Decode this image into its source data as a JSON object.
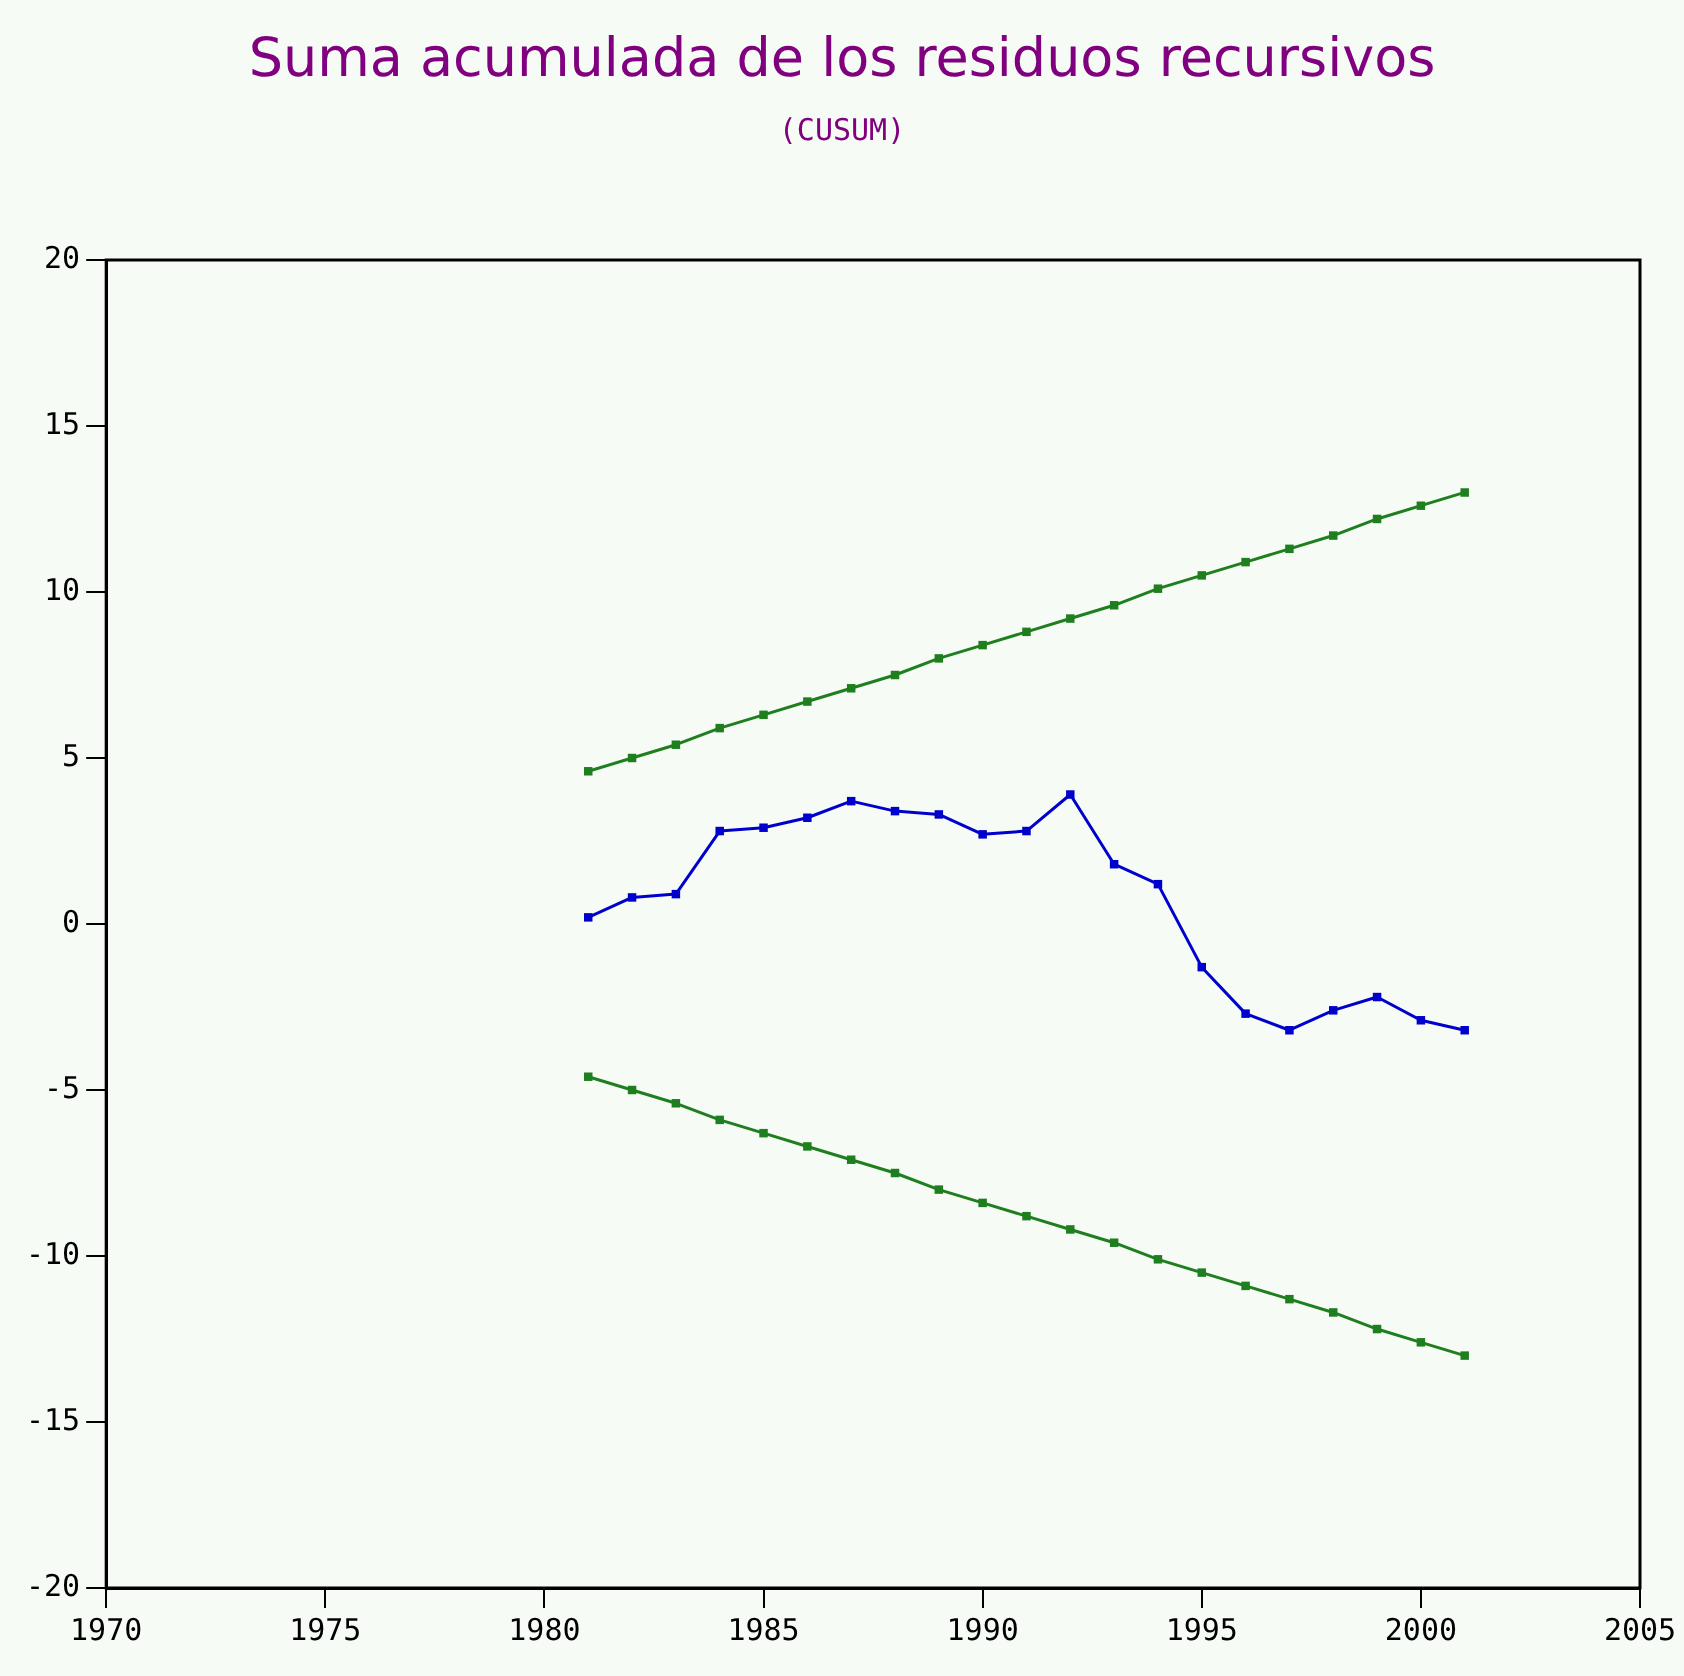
{
  "chart_data": {
    "type": "line",
    "title": "Suma acumulada de los residuos recursivos",
    "subtitle": "(CUSUM)",
    "x": [
      1981,
      1982,
      1983,
      1984,
      1985,
      1986,
      1987,
      1988,
      1989,
      1990,
      1991,
      1992,
      1993,
      1994,
      1995,
      1996,
      1997,
      1998,
      1999,
      2000,
      2001
    ],
    "series": [
      {
        "color": "#0000cc",
        "values": [
          0.2,
          0.8,
          0.9,
          2.8,
          2.9,
          3.2,
          3.7,
          3.4,
          3.3,
          2.7,
          2.8,
          3.9,
          1.8,
          1.2,
          -1.3,
          -2.7,
          -3.2,
          -2.6,
          -2.2,
          -2.9,
          -3.2
        ]
      },
      {
        "color": "#1f7f1f",
        "values": [
          4.6,
          5.0,
          5.4,
          5.9,
          6.3,
          6.7,
          7.1,
          7.5,
          8.0,
          8.4,
          8.8,
          9.2,
          9.6,
          10.1,
          10.5,
          10.9,
          11.3,
          11.7,
          12.2,
          12.6,
          13.0
        ]
      },
      {
        "color": "#1f7f1f",
        "values": [
          -4.6,
          -5.0,
          -5.4,
          -5.9,
          -6.3,
          -6.7,
          -7.1,
          -7.5,
          -8.0,
          -8.4,
          -8.8,
          -9.2,
          -9.6,
          -10.1,
          -10.5,
          -10.9,
          -11.3,
          -11.7,
          -12.2,
          -12.6,
          -13.0
        ]
      }
    ],
    "xlim": [
      1970,
      2005
    ],
    "xticks": [
      1970,
      1975,
      1980,
      1985,
      1990,
      1995,
      2000,
      2005
    ],
    "ylim": [
      -20,
      20
    ],
    "yticks": [
      -20,
      -15,
      -10,
      -5,
      0,
      5,
      10,
      15,
      20
    ],
    "grid": false,
    "legend": false,
    "marker": "square",
    "line_style": "solid"
  }
}
